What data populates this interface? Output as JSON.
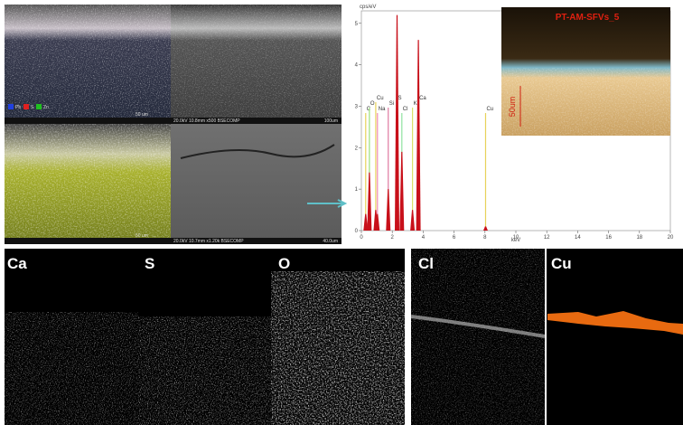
{
  "sem_panels": [
    {
      "caption": "20.0kV 10.8mm x500 BSECOMP",
      "scale": "100um"
    },
    {
      "caption": "20.0kV 10.7mm x1.20k BSECOMP",
      "scale": "40.0um"
    }
  ],
  "color_panels": [
    {
      "scale": "50 um",
      "legend": [
        "Pb",
        "S",
        "Zn"
      ]
    },
    {
      "scale": "50 um"
    }
  ],
  "spectrum": {
    "y_unit": "cps/eV",
    "x_unit": "keV",
    "xlim": [
      0,
      20
    ],
    "ylim": [
      0,
      5.3
    ],
    "xticks": [
      0,
      2,
      4,
      6,
      8,
      10,
      12,
      14,
      16,
      18,
      20
    ],
    "yticks": [
      0,
      1,
      2,
      3,
      4,
      5
    ],
    "peaks": [
      {
        "label": "C",
        "energy": 0.28,
        "height": 0.4,
        "color": "#e8d25a"
      },
      {
        "label": "O",
        "energy": 0.52,
        "height": 1.4,
        "color": "#9be07a"
      },
      {
        "label": "Cu",
        "energy": 0.93,
        "height": 0.5,
        "color": "#e8d25a"
      },
      {
        "label": "Na",
        "energy": 1.04,
        "height": 0.4,
        "color": "#f08ab8"
      },
      {
        "label": "Si",
        "energy": 1.74,
        "height": 1.0,
        "color": "#e07aa0"
      },
      {
        "label": "S",
        "energy": 2.31,
        "height": 5.2,
        "color": "#7ad6c8"
      },
      {
        "label": "Cl",
        "energy": 2.62,
        "height": 1.9,
        "color": "#8fe3a0"
      },
      {
        "label": "K",
        "energy": 3.31,
        "height": 0.5,
        "color": "#d9e26a"
      },
      {
        "label": "Ca",
        "energy": 3.69,
        "height": 4.6,
        "color": "#e8c85a"
      },
      {
        "label": "Cu",
        "energy": 8.04,
        "height": 0.1,
        "color": "#e8d25a"
      }
    ]
  },
  "inset": {
    "title": "PT-AM-SFVs_5",
    "scale": "50um"
  },
  "maps": [
    {
      "label": "Ca"
    },
    {
      "label": "S"
    },
    {
      "label": "O"
    },
    {
      "label": "Cl"
    },
    {
      "label": "Cu"
    }
  ]
}
